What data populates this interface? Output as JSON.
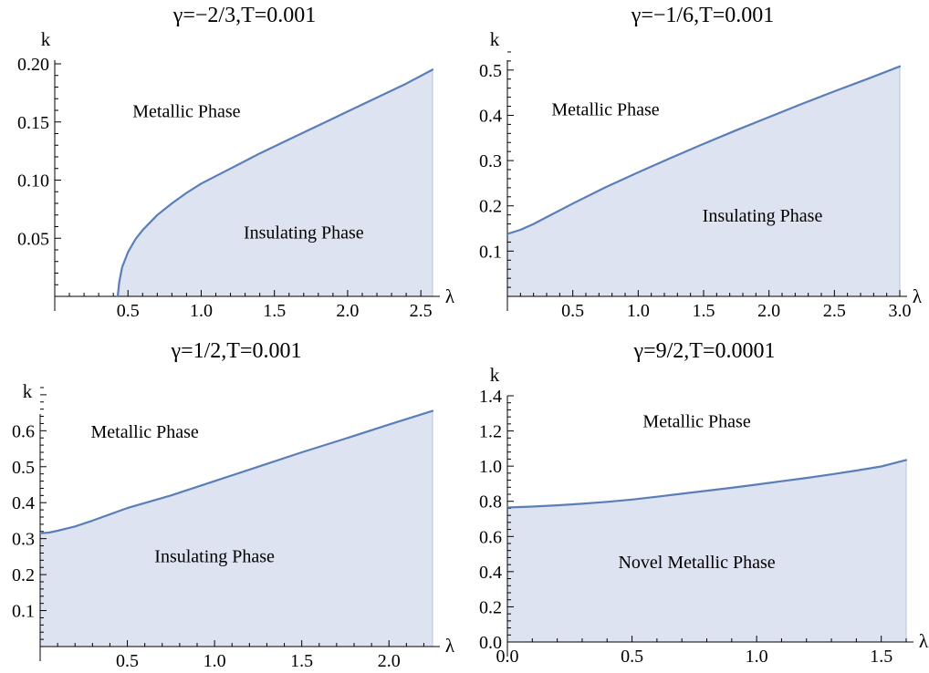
{
  "style": {
    "curve_color": "#5a7eb8",
    "fill_color": "#dde3f0",
    "area_edge_color": "#b7c4df"
  },
  "chart_data": [
    {
      "type": "area",
      "title": "γ=−2/3,T=0.001",
      "xlabel": "λ",
      "ylabel": "k",
      "xlim": [
        0,
        2.58
      ],
      "ylim": [
        0,
        0.2
      ],
      "xticks": [
        0.5,
        1.0,
        1.5,
        2.0,
        2.5
      ],
      "xtick_labels": [
        "0.5",
        "1.0",
        "1.5",
        "2.0",
        "2.5"
      ],
      "yticks": [
        0.05,
        0.1,
        0.15,
        0.2
      ],
      "ytick_labels": [
        "0.05",
        "0.10",
        "0.15",
        "0.20"
      ],
      "region_labels": [
        {
          "text": "Metallic Phase",
          "x": 0.9,
          "y": 0.154
        },
        {
          "text": "Insulating Phase",
          "x": 1.7,
          "y": 0.05
        }
      ],
      "series": [
        {
          "x": [
            0.43,
            0.44,
            0.46,
            0.5,
            0.55,
            0.6,
            0.7,
            0.8,
            0.9,
            1.0,
            1.2,
            1.4,
            1.6,
            1.8,
            2.0,
            2.2,
            2.4,
            2.58
          ],
          "values": [
            0.0,
            0.012,
            0.025,
            0.038,
            0.049,
            0.057,
            0.07,
            0.08,
            0.089,
            0.097,
            0.11,
            0.123,
            0.135,
            0.147,
            0.159,
            0.171,
            0.183,
            0.195
          ]
        }
      ]
    },
    {
      "type": "area",
      "title": "γ=−1/6,T=0.001",
      "xlabel": "λ",
      "ylabel": "k",
      "xlim": [
        0,
        3.0
      ],
      "ylim": [
        0,
        0.55
      ],
      "xticks": [
        0.5,
        1.0,
        1.5,
        2.0,
        2.5,
        3.0
      ],
      "xtick_labels": [
        "0.5",
        "1.0",
        "1.5",
        "2.0",
        "2.5",
        "3.0"
      ],
      "yticks": [
        0.1,
        0.2,
        0.3,
        0.4,
        0.5
      ],
      "ytick_labels": [
        "0.1",
        "0.2",
        "0.3",
        "0.4",
        "0.5"
      ],
      "region_labels": [
        {
          "text": "Metallic Phase",
          "x": 0.75,
          "y": 0.4
        },
        {
          "text": "Insulating Phase",
          "x": 1.95,
          "y": 0.165
        }
      ],
      "series": [
        {
          "x": [
            0.0,
            0.1,
            0.2,
            0.3,
            0.5,
            0.75,
            1.0,
            1.25,
            1.5,
            1.75,
            2.0,
            2.25,
            2.5,
            2.75,
            3.0
          ],
          "values": [
            0.138,
            0.147,
            0.16,
            0.175,
            0.205,
            0.241,
            0.274,
            0.306,
            0.337,
            0.367,
            0.396,
            0.425,
            0.453,
            0.48,
            0.508
          ]
        }
      ]
    },
    {
      "type": "area",
      "title": "γ=1/2,T=0.001",
      "xlabel": "λ",
      "ylabel": "k",
      "xlim": [
        0,
        2.25
      ],
      "ylim": [
        0,
        0.72
      ],
      "xticks": [
        0.5,
        1.0,
        1.5,
        2.0
      ],
      "xtick_labels": [
        "0.5",
        "1.0",
        "1.5",
        "2.0"
      ],
      "yticks": [
        0.1,
        0.2,
        0.3,
        0.4,
        0.5,
        0.6
      ],
      "ytick_labels": [
        "0.1",
        "0.2",
        "0.3",
        "0.4",
        "0.5",
        "0.6"
      ],
      "region_labels": [
        {
          "text": "Metallic Phase",
          "x": 0.6,
          "y": 0.58
        },
        {
          "text": "Insulating Phase",
          "x": 1.0,
          "y": 0.235
        }
      ],
      "series": [
        {
          "x": [
            0.0,
            0.05,
            0.1,
            0.2,
            0.3,
            0.5,
            0.75,
            1.0,
            1.25,
            1.5,
            1.75,
            2.0,
            2.25
          ],
          "values": [
            0.315,
            0.317,
            0.322,
            0.334,
            0.35,
            0.385,
            0.42,
            0.46,
            0.5,
            0.54,
            0.578,
            0.617,
            0.655
          ]
        }
      ]
    },
    {
      "type": "area",
      "title": "γ=9/2,T=0.0001",
      "xlabel": "λ",
      "ylabel": "k",
      "xlim": [
        0,
        1.6
      ],
      "ylim": [
        0,
        1.4
      ],
      "xticks": [
        0.0,
        0.5,
        1.0,
        1.5
      ],
      "xtick_labels": [
        "0.0",
        "0.5",
        "1.0",
        "1.5"
      ],
      "yticks": [
        0.0,
        0.2,
        0.4,
        0.6,
        0.8,
        1.0,
        1.2,
        1.4
      ],
      "ytick_labels": [
        "0.0",
        "0.2",
        "0.4",
        "0.6",
        "0.8",
        "1.0",
        "1.2",
        "1.4"
      ],
      "region_labels": [
        {
          "text": "Metallic Phase",
          "x": 0.76,
          "y": 1.22
        },
        {
          "text": "Novel Metallic Phase",
          "x": 0.76,
          "y": 0.42
        }
      ],
      "series": [
        {
          "x": [
            0.0,
            0.1,
            0.2,
            0.3,
            0.4,
            0.5,
            0.6,
            0.7,
            0.8,
            0.9,
            1.0,
            1.1,
            1.2,
            1.3,
            1.4,
            1.5,
            1.6
          ],
          "values": [
            0.765,
            0.77,
            0.777,
            0.786,
            0.797,
            0.81,
            0.826,
            0.843,
            0.86,
            0.877,
            0.895,
            0.914,
            0.933,
            0.953,
            0.975,
            0.998,
            1.035
          ]
        }
      ]
    }
  ]
}
